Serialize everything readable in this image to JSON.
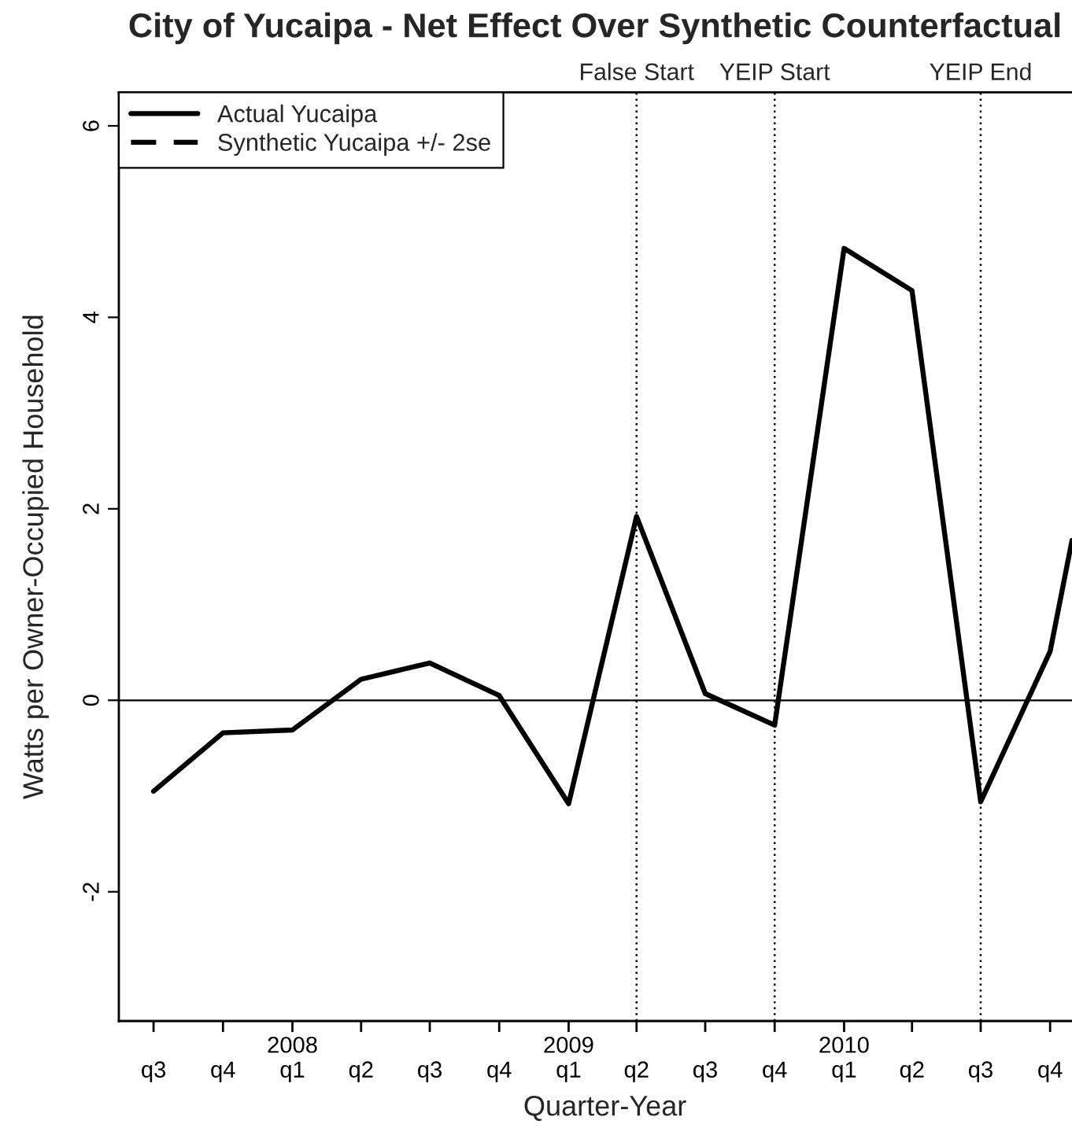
{
  "chart_data": {
    "type": "line",
    "title": "City of Yucaipa - Net Effect Over Synthetic Counterfactual",
    "xlabel": "Quarter-Year",
    "ylabel": "Watts per Owner-Occupied Household",
    "x": [
      "2007-07",
      "2007-10",
      "2008-01",
      "2008-04",
      "2008-07",
      "2008-10",
      "2009-01",
      "2009-04",
      "2009-07",
      "2009-10",
      "2010-01",
      "2010-04",
      "2010-07",
      "2010-10",
      "2010-10-30"
    ],
    "series": [
      {
        "name": "Actual Yucaipa",
        "color": "#000000",
        "line_style": "solid",
        "values": [
          -0.95,
          -0.34,
          -0.31,
          0.22,
          0.39,
          0.05,
          -1.08,
          1.92,
          0.07,
          -0.26,
          4.72,
          4.28,
          -1.06,
          0.51,
          1.67
        ]
      },
      {
        "name": "Synthetic Yucaipa +/- 2se",
        "color": "#000000",
        "line_style": "dashed",
        "values": [
          null,
          null,
          null,
          null,
          null,
          null,
          null,
          null,
          null,
          null,
          null,
          null,
          null,
          null,
          null
        ]
      }
    ],
    "xlim": [
      "2007-05-16",
      "2010-10-30"
    ],
    "xticks": [
      {
        "value": "2007-07",
        "label": "q3"
      },
      {
        "value": "2007-10",
        "label": "q4"
      },
      {
        "value": "2008-01",
        "label": "2008\nq1"
      },
      {
        "value": "2008-04",
        "label": "q2"
      },
      {
        "value": "2008-07",
        "label": "q3"
      },
      {
        "value": "2008-10",
        "label": "q4"
      },
      {
        "value": "2009-01",
        "label": "2009\nq1"
      },
      {
        "value": "2009-04",
        "label": "q2"
      },
      {
        "value": "2009-07",
        "label": "q3"
      },
      {
        "value": "2009-10",
        "label": "q4"
      },
      {
        "value": "2010-01",
        "label": "2010\nq1"
      },
      {
        "value": "2010-04",
        "label": "q2"
      },
      {
        "value": "2010-07",
        "label": "q3"
      },
      {
        "value": "2010-10",
        "label": "q4"
      }
    ],
    "ylim": [
      -3.35,
      6.35
    ],
    "yticks": [
      -2,
      0,
      2,
      4,
      6
    ],
    "ref_lines": [
      {
        "axis": "y",
        "value": 0,
        "color": "#000000",
        "line_style": "solid"
      },
      {
        "axis": "x",
        "value": "2009-04",
        "label": "False Start",
        "color": "#000000",
        "line_style": "dotted"
      },
      {
        "axis": "x",
        "value": "2009-10",
        "label": "YEIP Start",
        "color": "#000000",
        "line_style": "dotted"
      },
      {
        "axis": "x",
        "value": "2010-07",
        "label": "YEIP End",
        "color": "#000000",
        "line_style": "dotted"
      }
    ],
    "legend": "top left"
  }
}
